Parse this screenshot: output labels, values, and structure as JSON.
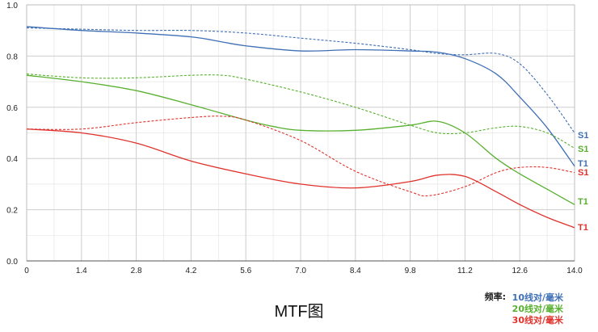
{
  "chart_data": {
    "type": "line",
    "title": "MTF图",
    "xlim": [
      0,
      14.0
    ],
    "ylim": [
      0,
      1.0
    ],
    "x_ticks": [
      "0",
      "1.4",
      "2.8",
      "4.2",
      "5.6",
      "7.0",
      "8.4",
      "9.8",
      "11.2",
      "12.6",
      "14.0"
    ],
    "x_tick_values": [
      0,
      1.4,
      2.8,
      4.2,
      5.6,
      7.0,
      8.4,
      9.8,
      11.2,
      12.6,
      14.0
    ],
    "y_ticks": [
      "0.0",
      "0.2",
      "0.4",
      "0.6",
      "0.8",
      "1.0"
    ],
    "y_tick_values": [
      0.0,
      0.2,
      0.4,
      0.6,
      0.8,
      1.0
    ],
    "grid": true,
    "legend": {
      "heading": "频率:",
      "placement": "bottom-right",
      "items": [
        {
          "label": "10线对/毫米",
          "color": "#3f6fb5"
        },
        {
          "label": "20线对/毫米",
          "color": "#58b030"
        },
        {
          "label": "30线对/毫米",
          "color": "#e0322c"
        }
      ]
    },
    "series": [
      {
        "label": "S1",
        "color": "#3f6fb5",
        "dashed": true,
        "x": [
          0,
          1.4,
          2.8,
          4.2,
          5.6,
          7.0,
          8.4,
          9.8,
          10.5,
          11.2,
          12.0,
          12.6,
          13.3,
          14.0
        ],
        "y": [
          0.91,
          0.905,
          0.9,
          0.9,
          0.89,
          0.87,
          0.85,
          0.825,
          0.81,
          0.805,
          0.81,
          0.77,
          0.65,
          0.5
        ]
      },
      {
        "label": "T1",
        "color": "#3f6fb5",
        "dashed": false,
        "x": [
          0,
          1.4,
          2.8,
          4.2,
          5.0,
          5.6,
          7.0,
          8.4,
          9.8,
          10.5,
          11.2,
          12.0,
          12.6,
          13.3,
          14.0
        ],
        "y": [
          0.915,
          0.9,
          0.89,
          0.875,
          0.855,
          0.84,
          0.82,
          0.825,
          0.82,
          0.815,
          0.79,
          0.73,
          0.64,
          0.52,
          0.37
        ]
      },
      {
        "label": "S1",
        "color": "#58b030",
        "dashed": true,
        "x": [
          0,
          1.4,
          2.8,
          4.2,
          5.0,
          5.6,
          7.0,
          8.4,
          9.8,
          10.5,
          11.2,
          12.0,
          12.6,
          13.3,
          14.0
        ],
        "y": [
          0.73,
          0.715,
          0.715,
          0.725,
          0.725,
          0.71,
          0.66,
          0.6,
          0.53,
          0.5,
          0.5,
          0.52,
          0.525,
          0.5,
          0.44
        ]
      },
      {
        "label": "T1",
        "color": "#58b030",
        "dashed": false,
        "x": [
          0,
          1.4,
          2.8,
          4.2,
          5.6,
          6.3,
          7.0,
          8.4,
          9.8,
          10.5,
          11.2,
          12.0,
          12.6,
          13.3,
          14.0
        ],
        "y": [
          0.725,
          0.7,
          0.665,
          0.61,
          0.55,
          0.525,
          0.51,
          0.51,
          0.53,
          0.545,
          0.5,
          0.4,
          0.34,
          0.28,
          0.22
        ]
      },
      {
        "label": "S1",
        "color": "#e0322c",
        "dashed": true,
        "x": [
          0,
          1.4,
          2.8,
          4.2,
          5.0,
          5.6,
          7.0,
          8.4,
          9.8,
          10.3,
          11.2,
          12.0,
          12.6,
          13.3,
          14.0
        ],
        "y": [
          0.515,
          0.515,
          0.54,
          0.56,
          0.565,
          0.55,
          0.47,
          0.35,
          0.27,
          0.255,
          0.29,
          0.345,
          0.365,
          0.365,
          0.345
        ]
      },
      {
        "label": "T1",
        "color": "#e0322c",
        "dashed": false,
        "x": [
          0,
          1.4,
          2.8,
          4.2,
          5.6,
          7.0,
          8.4,
          9.8,
          10.5,
          11.2,
          12.0,
          12.6,
          13.3,
          14.0
        ],
        "y": [
          0.515,
          0.5,
          0.46,
          0.39,
          0.34,
          0.3,
          0.285,
          0.31,
          0.335,
          0.33,
          0.27,
          0.22,
          0.17,
          0.13
        ]
      }
    ],
    "end_labels": [
      {
        "text": "S1",
        "color": "#3f6fb5"
      },
      {
        "text": "S1",
        "color": "#58b030"
      },
      {
        "text": "T1",
        "color": "#3f6fb5"
      },
      {
        "text": "S1",
        "color": "#e0322c"
      },
      {
        "text": "T1",
        "color": "#58b030"
      },
      {
        "text": "T1",
        "color": "#e0322c"
      }
    ]
  }
}
